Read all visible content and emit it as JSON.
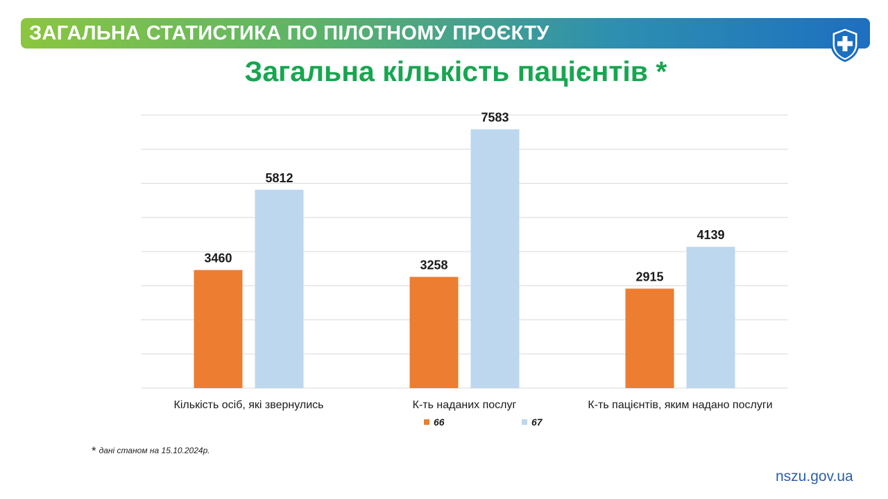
{
  "header": {
    "banner_title": "ЗАГАЛЬНА СТАТИСТИКА ПО ПІЛОТНОМУ ПРОЄКТУ",
    "logo": "shield-cross-icon"
  },
  "colors": {
    "title": "#17a650",
    "series_66": "#ed7d31",
    "series_67": "#bdd7ee",
    "gridline": "#d9d9d9",
    "site": "#2a5fa8"
  },
  "chart_data": {
    "type": "bar",
    "title": "Загальна кількість пацієнтів *",
    "categories": [
      "Кількість осіб, які звернулись",
      "К-ть наданих послуг",
      "К-ть пацієнтів, яким надано послуги"
    ],
    "series": [
      {
        "name": "66",
        "values": [
          3460,
          3258,
          2915
        ],
        "color": "#ed7d31"
      },
      {
        "name": "67",
        "values": [
          5812,
          7583,
          4139
        ],
        "color": "#bdd7ee"
      }
    ],
    "ylim": [
      0,
      8000
    ],
    "grid": true,
    "legend": "bottom"
  },
  "footnote": {
    "star": "*",
    "text": "дані станом на 15.10.2024р."
  },
  "site": "nszu.gov.ua"
}
